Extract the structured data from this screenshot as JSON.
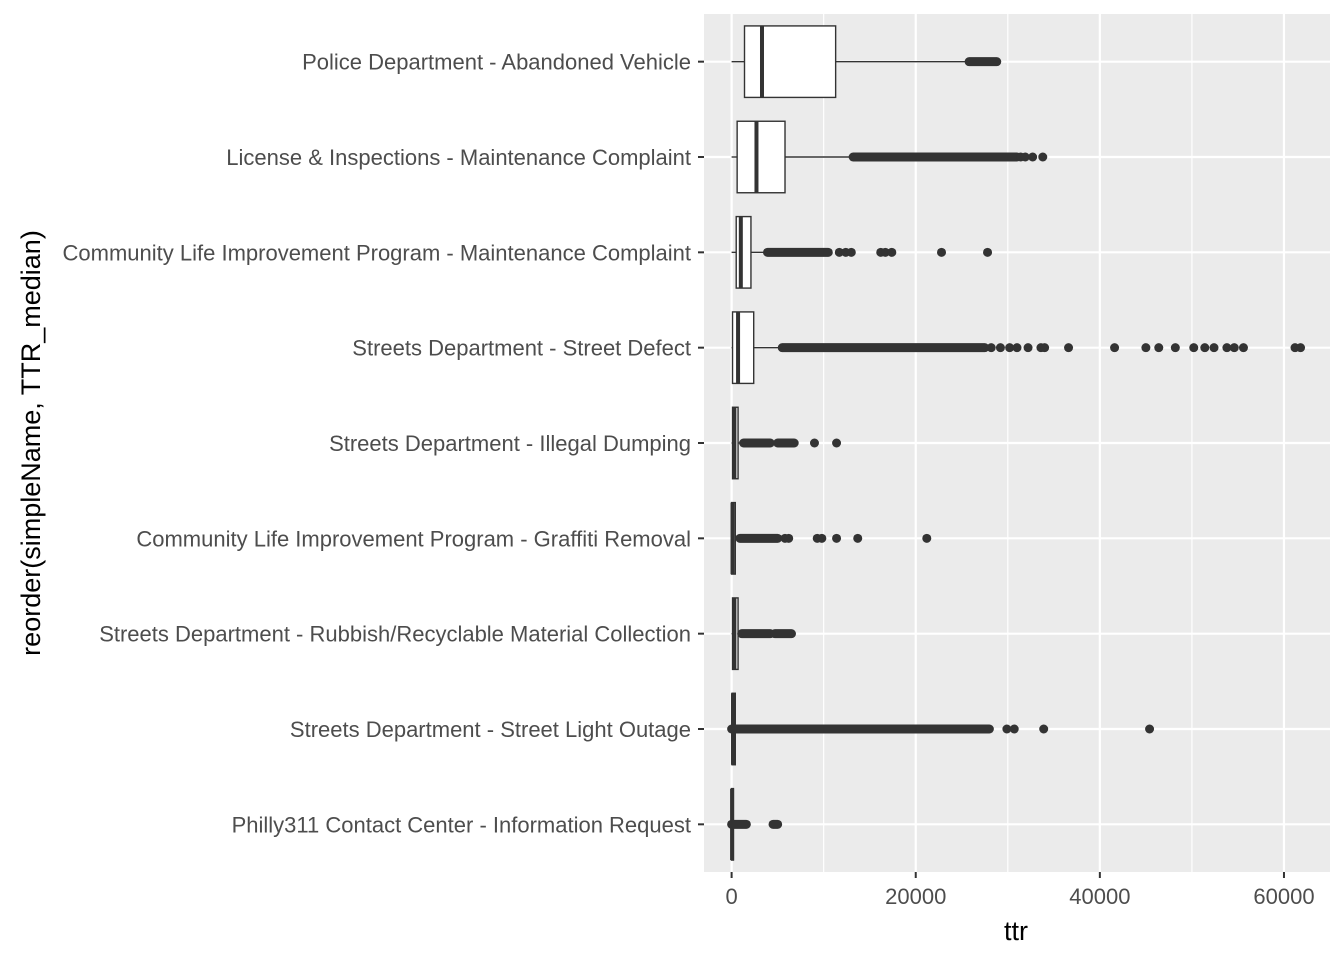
{
  "chart_data": {
    "type": "boxplot",
    "orientation": "horizontal",
    "title": "",
    "xlabel": "ttr",
    "ylabel": "reorder(simpleName, TTR_median)",
    "xlim": [
      -3000,
      65000
    ],
    "xticks": [
      0,
      20000,
      40000,
      60000
    ],
    "xtick_labels": [
      "0",
      "20000",
      "40000",
      "60000"
    ],
    "grid": true,
    "colors": {
      "panel": "#ebebeb",
      "grid_major": "#ffffff",
      "box_fill": "#ffffff",
      "box_line": "#333333",
      "outlier": "#333333"
    },
    "categories": [
      "Police Department - Abandoned Vehicle",
      "License & Inspections - Maintenance Complaint",
      "Community Life Improvement Program - Maintenance Complaint",
      "Streets Department - Street Defect",
      "Streets Department - Illegal Dumping",
      "Community Life Improvement Program - Graffiti Removal",
      "Streets Department - Rubbish/Recyclable Material Collection",
      "Streets Department - Street Light Outage",
      "Philly311 Contact Center - Information Request"
    ],
    "boxes": [
      {
        "min": 0,
        "q1": 1400,
        "median": 3300,
        "q3": 11300,
        "whisker_high": 25800,
        "outlier_runs": [
          [
            25800,
            28800
          ]
        ],
        "outliers": []
      },
      {
        "min": 0,
        "q1": 600,
        "median": 2700,
        "q3": 5800,
        "whisker_high": 13200,
        "outlier_runs": [
          [
            13200,
            31000
          ]
        ],
        "outliers": [
          31400,
          31900,
          32700,
          33800
        ]
      },
      {
        "min": 0,
        "q1": 500,
        "median": 1000,
        "q3": 2100,
        "whisker_high": 3900,
        "outlier_runs": [
          [
            3900,
            10500
          ]
        ],
        "outliers": [
          11700,
          12400,
          13000,
          16200,
          16700,
          17400,
          22800,
          27800
        ]
      },
      {
        "min": 0,
        "q1": 100,
        "median": 700,
        "q3": 2400,
        "whisker_high": 5500,
        "outlier_runs": [
          [
            5500,
            27500
          ]
        ],
        "outliers": [
          28200,
          29200,
          30200,
          31000,
          32200,
          33600,
          34000,
          36600,
          41600,
          45000,
          46400,
          48200,
          50200,
          51400,
          52400,
          53800,
          54600,
          55600,
          61200,
          61800
        ]
      },
      {
        "min": 0,
        "q1": 100,
        "median": 300,
        "q3": 700,
        "whisker_high": 1300,
        "outlier_runs": [
          [
            1300,
            4200
          ],
          [
            5000,
            6800
          ]
        ],
        "outliers": [
          9000,
          11400
        ]
      },
      {
        "min": 0,
        "q1": 0,
        "median": 100,
        "q3": 400,
        "whisker_high": 900,
        "outlier_runs": [
          [
            900,
            5000
          ]
        ],
        "outliers": [
          5800,
          6200,
          9300,
          9800,
          11400,
          13700,
          21200
        ]
      },
      {
        "min": 0,
        "q1": 100,
        "median": 300,
        "q3": 700,
        "whisker_high": 1100,
        "outlier_runs": [
          [
            1100,
            4200
          ],
          [
            4700,
            6500
          ]
        ],
        "outliers": []
      },
      {
        "min": 0,
        "q1": 50,
        "median": 150,
        "q3": 400,
        "whisker_high": 600,
        "outlier_runs": [
          [
            0,
            28000
          ]
        ],
        "outliers": [
          29900,
          30700,
          33900,
          45400
        ]
      },
      {
        "min": 0,
        "q1": 0,
        "median": 50,
        "q3": 200,
        "whisker_high": 300,
        "outlier_runs": [
          [
            0,
            1600
          ],
          [
            4500,
            5000
          ]
        ],
        "outliers": []
      }
    ]
  }
}
